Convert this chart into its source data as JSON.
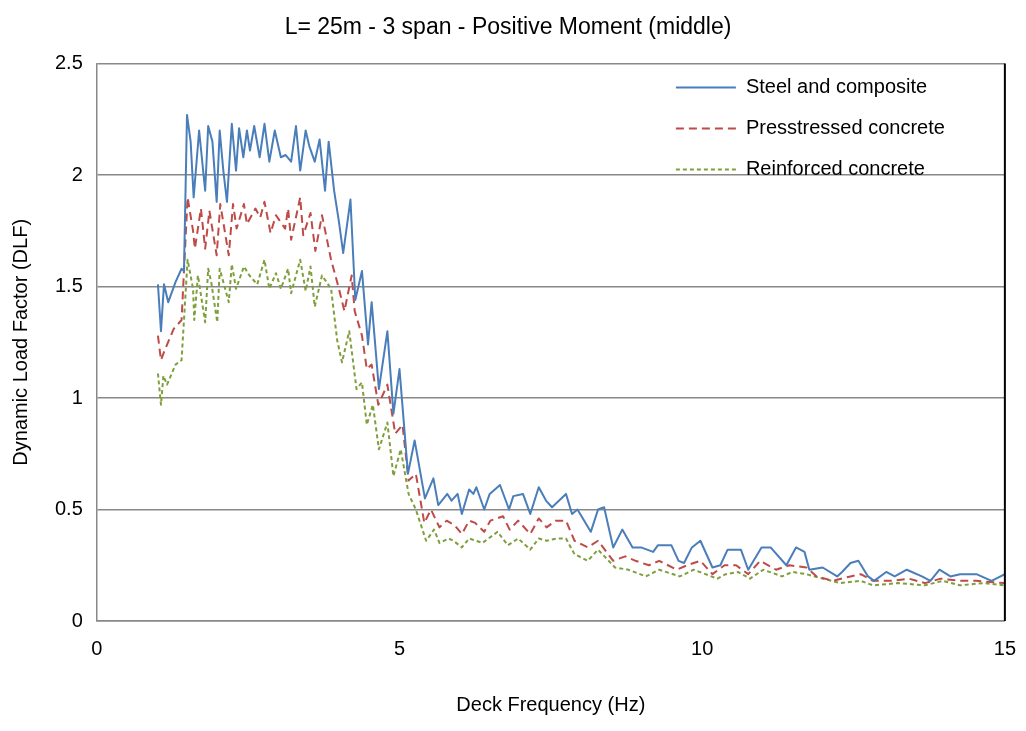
{
  "chart_data": {
    "type": "line",
    "title": "L= 25m - 3 span - Positive Moment (middle)",
    "xlabel": "Deck Frequency (Hz)",
    "ylabel": "Dynamic Load Factor (DLF)",
    "xlim": [
      0,
      15
    ],
    "xticks": [
      0,
      5,
      10,
      15
    ],
    "ylim": [
      0,
      2.5
    ],
    "yticks": [
      0,
      0.5,
      1,
      1.5,
      2,
      2.5
    ],
    "grid": "y",
    "legend": "top right",
    "marker": "none",
    "series": [
      {
        "name": "Steel and composite",
        "color": "#4a7ebb",
        "line_style": "solid",
        "x": [
          1.01,
          1.06,
          1.11,
          1.18,
          1.3,
          1.4,
          1.44,
          1.49,
          1.55,
          1.6,
          1.69,
          1.79,
          1.84,
          1.91,
          1.98,
          2.03,
          2.09,
          2.15,
          2.23,
          2.3,
          2.35,
          2.42,
          2.48,
          2.53,
          2.6,
          2.69,
          2.77,
          2.85,
          2.94,
          3.04,
          3.12,
          3.21,
          3.29,
          3.36,
          3.45,
          3.51,
          3.6,
          3.68,
          3.77,
          3.83,
          3.92,
          4.0,
          4.07,
          4.19,
          4.27,
          4.38,
          4.48,
          4.54,
          4.66,
          4.8,
          4.9,
          5.0,
          5.14,
          5.25,
          5.42,
          5.56,
          5.64,
          5.79,
          5.86,
          5.96,
          6.03,
          6.15,
          6.22,
          6.27,
          6.4,
          6.49,
          6.66,
          6.81,
          6.88,
          7.04,
          7.16,
          7.3,
          7.42,
          7.52,
          7.75,
          7.85,
          7.94,
          8.16,
          8.28,
          8.38,
          8.53,
          8.68,
          8.85,
          8.99,
          9.19,
          9.27,
          9.49,
          9.61,
          9.7,
          9.83,
          9.97,
          10.17,
          10.3,
          10.42,
          10.64,
          10.76,
          10.98,
          11.13,
          11.39,
          11.55,
          11.69,
          11.77,
          11.99,
          12.23,
          12.31,
          12.45,
          12.58,
          12.74,
          12.84,
          13.04,
          13.18,
          13.38,
          13.63,
          13.77,
          13.92,
          14.1,
          14.26,
          14.53,
          14.78,
          15.0
        ],
        "values": [
          1.51,
          1.3,
          1.51,
          1.43,
          1.52,
          1.58,
          1.57,
          2.27,
          2.15,
          1.9,
          2.2,
          1.93,
          2.22,
          2.15,
          1.88,
          2.2,
          2.02,
          1.88,
          2.23,
          2.02,
          2.21,
          2.08,
          2.2,
          2.11,
          2.22,
          2.08,
          2.23,
          2.06,
          2.2,
          2.08,
          2.09,
          2.06,
          2.22,
          2.02,
          2.2,
          2.13,
          2.06,
          2.16,
          1.93,
          2.15,
          1.93,
          1.79,
          1.65,
          1.89,
          1.44,
          1.57,
          1.24,
          1.43,
          1.04,
          1.3,
          0.93,
          1.13,
          0.66,
          0.81,
          0.55,
          0.64,
          0.52,
          0.57,
          0.54,
          0.57,
          0.48,
          0.59,
          0.57,
          0.6,
          0.5,
          0.57,
          0.61,
          0.5,
          0.56,
          0.57,
          0.48,
          0.6,
          0.54,
          0.51,
          0.57,
          0.48,
          0.5,
          0.4,
          0.5,
          0.51,
          0.33,
          0.41,
          0.33,
          0.33,
          0.31,
          0.34,
          0.34,
          0.27,
          0.26,
          0.33,
          0.36,
          0.24,
          0.25,
          0.32,
          0.32,
          0.23,
          0.33,
          0.33,
          0.25,
          0.33,
          0.31,
          0.23,
          0.24,
          0.2,
          0.22,
          0.26,
          0.27,
          0.2,
          0.18,
          0.22,
          0.2,
          0.23,
          0.2,
          0.18,
          0.23,
          0.2,
          0.21,
          0.21,
          0.18,
          0.21
        ]
      },
      {
        "name": "Presstressed concrete",
        "color": "#be4b48",
        "line_style": "dashed",
        "x": [
          1.01,
          1.06,
          1.13,
          1.27,
          1.4,
          1.5,
          1.59,
          1.62,
          1.72,
          1.79,
          1.86,
          1.98,
          2.04,
          2.18,
          2.25,
          2.31,
          2.43,
          2.48,
          2.62,
          2.7,
          2.77,
          2.87,
          2.96,
          3.11,
          3.16,
          3.21,
          3.36,
          3.41,
          3.53,
          3.61,
          3.72,
          3.87,
          4.0,
          4.09,
          4.21,
          4.26,
          4.38,
          4.46,
          4.54,
          4.65,
          4.8,
          4.93,
          5.05,
          5.15,
          5.27,
          5.41,
          5.52,
          5.66,
          5.78,
          5.91,
          6.03,
          6.15,
          6.25,
          6.4,
          6.5,
          6.71,
          6.82,
          6.96,
          7.16,
          7.3,
          7.43,
          7.58,
          7.75,
          7.89,
          8.11,
          8.28,
          8.53,
          8.73,
          8.9,
          9.12,
          9.29,
          9.58,
          9.75,
          9.97,
          10.17,
          10.37,
          10.56,
          10.76,
          10.96,
          11.22,
          11.44,
          11.72,
          11.89,
          12.16,
          12.45,
          12.62,
          12.82,
          13.13,
          13.41,
          13.68,
          13.94,
          14.26,
          14.53,
          15.0
        ],
        "values": [
          1.28,
          1.17,
          1.22,
          1.31,
          1.35,
          1.9,
          1.75,
          1.67,
          1.85,
          1.67,
          1.84,
          1.64,
          1.87,
          1.64,
          1.87,
          1.76,
          1.87,
          1.78,
          1.85,
          1.81,
          1.88,
          1.74,
          1.82,
          1.76,
          1.85,
          1.71,
          1.9,
          1.73,
          1.83,
          1.66,
          1.82,
          1.62,
          1.49,
          1.39,
          1.55,
          1.39,
          1.28,
          1.13,
          1.15,
          0.97,
          1.06,
          0.84,
          0.88,
          0.63,
          0.66,
          0.44,
          0.5,
          0.42,
          0.45,
          0.43,
          0.39,
          0.45,
          0.44,
          0.4,
          0.45,
          0.47,
          0.41,
          0.45,
          0.39,
          0.46,
          0.42,
          0.45,
          0.45,
          0.36,
          0.33,
          0.36,
          0.27,
          0.29,
          0.27,
          0.25,
          0.27,
          0.23,
          0.25,
          0.27,
          0.21,
          0.25,
          0.25,
          0.21,
          0.27,
          0.23,
          0.25,
          0.24,
          0.2,
          0.18,
          0.2,
          0.21,
          0.18,
          0.18,
          0.19,
          0.17,
          0.19,
          0.18,
          0.18,
          0.17
        ]
      },
      {
        "name": "Reinforced concrete",
        "color": "#7f9f3c",
        "line_style": "dotted",
        "x": [
          1.01,
          1.06,
          1.1,
          1.16,
          1.3,
          1.4,
          1.5,
          1.59,
          1.61,
          1.67,
          1.79,
          1.84,
          1.89,
          1.99,
          2.03,
          2.18,
          2.23,
          2.3,
          2.43,
          2.52,
          2.65,
          2.77,
          2.85,
          2.96,
          3.04,
          3.16,
          3.21,
          3.36,
          3.45,
          3.53,
          3.6,
          3.72,
          3.87,
          3.97,
          4.05,
          4.17,
          4.29,
          4.38,
          4.46,
          4.56,
          4.66,
          4.8,
          4.9,
          5.02,
          5.15,
          5.27,
          5.44,
          5.57,
          5.66,
          5.81,
          5.89,
          6.03,
          6.15,
          6.37,
          6.62,
          6.79,
          6.96,
          7.16,
          7.3,
          7.43,
          7.6,
          7.75,
          7.89,
          8.11,
          8.28,
          8.56,
          8.78,
          9.07,
          9.29,
          9.63,
          9.86,
          10.25,
          10.39,
          10.59,
          10.79,
          11.01,
          11.32,
          11.49,
          11.72,
          11.99,
          12.28,
          12.62,
          12.82,
          13.24,
          13.68,
          13.97,
          14.26,
          14.64,
          15.0
        ],
        "values": [
          1.11,
          0.97,
          1.1,
          1.06,
          1.15,
          1.17,
          1.62,
          1.49,
          1.35,
          1.55,
          1.34,
          1.58,
          1.52,
          1.34,
          1.58,
          1.43,
          1.6,
          1.49,
          1.59,
          1.55,
          1.51,
          1.62,
          1.49,
          1.56,
          1.49,
          1.58,
          1.47,
          1.62,
          1.48,
          1.59,
          1.41,
          1.55,
          1.49,
          1.26,
          1.16,
          1.3,
          1.04,
          1.07,
          0.88,
          0.97,
          0.77,
          0.89,
          0.65,
          0.77,
          0.57,
          0.5,
          0.36,
          0.41,
          0.35,
          0.37,
          0.36,
          0.33,
          0.37,
          0.35,
          0.4,
          0.34,
          0.37,
          0.32,
          0.37,
          0.36,
          0.37,
          0.37,
          0.3,
          0.27,
          0.32,
          0.24,
          0.23,
          0.2,
          0.23,
          0.2,
          0.23,
          0.19,
          0.21,
          0.22,
          0.19,
          0.23,
          0.2,
          0.22,
          0.21,
          0.19,
          0.17,
          0.18,
          0.16,
          0.17,
          0.16,
          0.18,
          0.16,
          0.17,
          0.16
        ]
      }
    ]
  }
}
